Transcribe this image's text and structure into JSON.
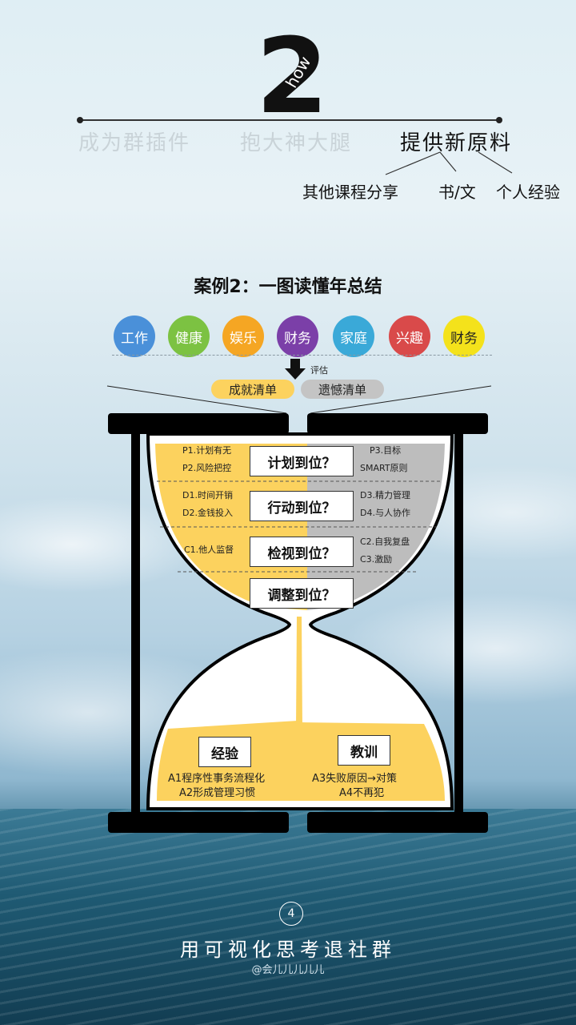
{
  "header": {
    "big_number": "2",
    "how_text": "how",
    "options": [
      "成为群插件",
      "抱大神大腿",
      "提供新原料"
    ],
    "sub_options": [
      "其他课程分享",
      "书/文",
      "个人经验"
    ]
  },
  "diagram": {
    "title": "案例2：一图读懂年总结",
    "categories": [
      {
        "label": "工作",
        "color": "#4a90d9"
      },
      {
        "label": "健康",
        "color": "#7cc242"
      },
      {
        "label": "娱乐",
        "color": "#f5a623"
      },
      {
        "label": "财务",
        "color": "#7b3fa8"
      },
      {
        "label": "家庭",
        "color": "#3aa9d8"
      },
      {
        "label": "兴趣",
        "color": "#d94a4a"
      },
      {
        "label": "财务",
        "color": "#f4e21b"
      }
    ],
    "evaluate_label": "评估",
    "lists": [
      "成就清单",
      "遗憾清单"
    ],
    "rows": [
      {
        "box": "计划到位？",
        "left": [
          "P1.计划有无",
          "P2.风险把控"
        ],
        "right": [
          "P3.目标",
          "SMART原则"
        ]
      },
      {
        "box": "行动到位？",
        "left": [
          "D1.时间开销",
          "D2.金钱投入"
        ],
        "right": [
          "D3.精力管理",
          "D4.与人协作"
        ]
      },
      {
        "box": "检视到位？",
        "left": [
          "C1.他人监督"
        ],
        "right": [
          "C2.自我复盘",
          "C3.激励"
        ]
      },
      {
        "box": "调整到位？",
        "left": [],
        "right": []
      }
    ],
    "bottom": {
      "left_title": "经验",
      "right_title": "教训",
      "left_items": [
        "A1程序性事务流程化",
        "A2形成管理习惯"
      ],
      "right_items": [
        "A3失败原因→对策",
        "A4不再犯"
      ]
    },
    "colors": {
      "sand": "#fcd25e",
      "gray": "#bdbdbd",
      "frame": "#000000"
    }
  },
  "footer": {
    "page_number": "4",
    "title": "用可视化思考退社群",
    "handle": "@会儿儿儿儿儿"
  }
}
